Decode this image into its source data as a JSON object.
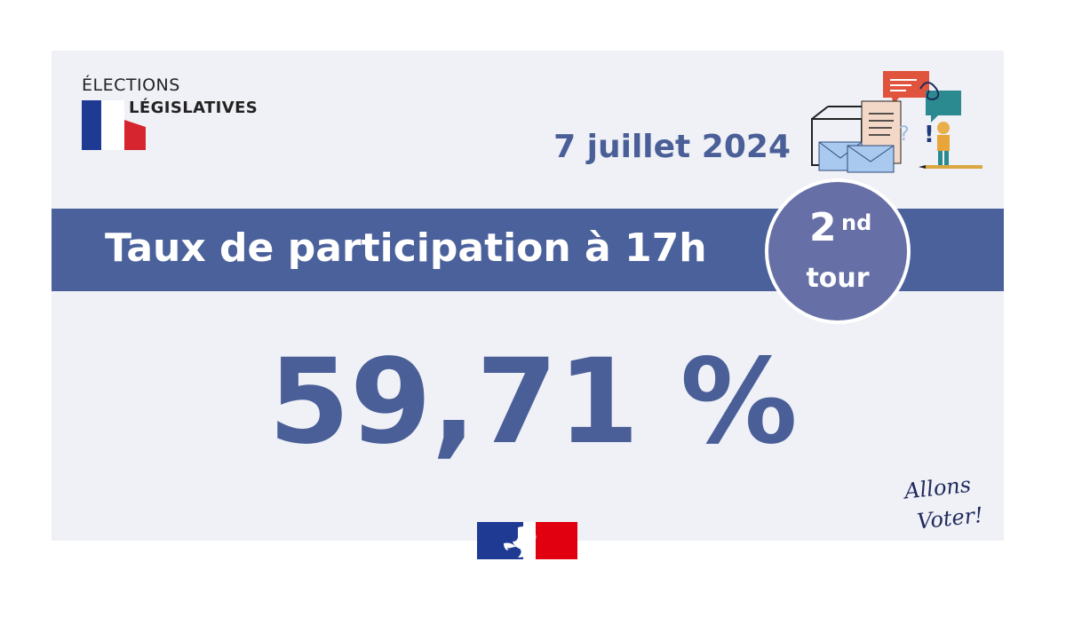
{
  "logo": {
    "line1": "ÉLECTIONS",
    "line2": "LÉGISLATIVES",
    "flag_colors": [
      "#1f3a93",
      "#ffffff",
      "#d6252e"
    ]
  },
  "date": "7 juillet 2024",
  "banner": {
    "title": "Taux de participation à 17h"
  },
  "round": {
    "number": "2",
    "superscript": "nd",
    "label": "tour"
  },
  "rate": "59,71 %",
  "signature": {
    "line1": "Allons",
    "line2": "Voter!"
  },
  "colors": {
    "accent": "#4a5f98",
    "banner": "#4b619b",
    "badge": "#6670a6",
    "card": "#f0f1f7",
    "flag_blue": "#1f3a93",
    "flag_red": "#e1000f"
  },
  "icons": {
    "illustration": "ballot-box-letters-speech-bubbles-voter",
    "government-logo": "marianne-flag-logo"
  }
}
